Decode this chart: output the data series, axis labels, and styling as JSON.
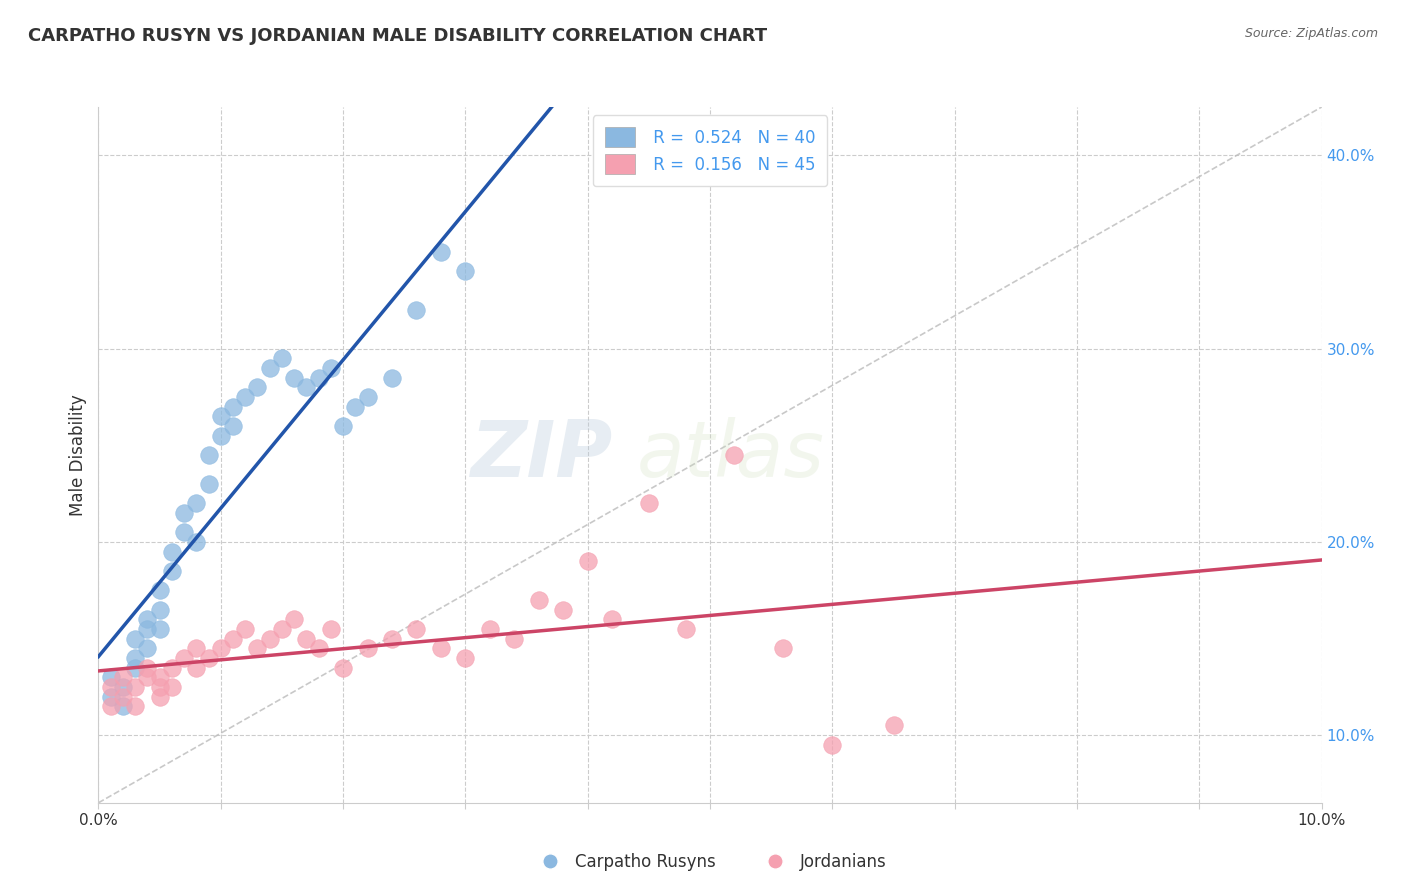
{
  "title": "CARPATHO RUSYN VS JORDANIAN MALE DISABILITY CORRELATION CHART",
  "source": "Source: ZipAtlas.com",
  "ylabel": "Male Disability",
  "xlim": [
    0.0,
    0.1
  ],
  "ylim": [
    0.065,
    0.425
  ],
  "blue_color": "#8BB8E0",
  "pink_color": "#F5A0B0",
  "blue_line_color": "#2255AA",
  "pink_line_color": "#CC4466",
  "ref_line_color": "#BBBBBB",
  "background_color": "#FFFFFF",
  "grid_color": "#CCCCCC",
  "right_tick_color": "#4499EE",
  "title_color": "#333333",
  "source_color": "#666666",
  "ylabel_color": "#333333",
  "watermark_color": "#DDDDDD",
  "blue_scatter_x": [
    0.001,
    0.001,
    0.002,
    0.002,
    0.003,
    0.003,
    0.003,
    0.004,
    0.004,
    0.004,
    0.005,
    0.005,
    0.005,
    0.006,
    0.006,
    0.007,
    0.007,
    0.008,
    0.008,
    0.009,
    0.009,
    0.01,
    0.01,
    0.011,
    0.011,
    0.012,
    0.013,
    0.014,
    0.015,
    0.016,
    0.017,
    0.018,
    0.019,
    0.02,
    0.021,
    0.022,
    0.024,
    0.026,
    0.028,
    0.03
  ],
  "blue_scatter_y": [
    0.12,
    0.13,
    0.125,
    0.115,
    0.14,
    0.15,
    0.135,
    0.16,
    0.155,
    0.145,
    0.165,
    0.175,
    0.155,
    0.195,
    0.185,
    0.205,
    0.215,
    0.22,
    0.2,
    0.23,
    0.245,
    0.255,
    0.265,
    0.27,
    0.26,
    0.275,
    0.28,
    0.29,
    0.295,
    0.285,
    0.28,
    0.285,
    0.29,
    0.26,
    0.27,
    0.275,
    0.285,
    0.32,
    0.35,
    0.34
  ],
  "pink_scatter_x": [
    0.001,
    0.001,
    0.002,
    0.002,
    0.003,
    0.003,
    0.004,
    0.004,
    0.005,
    0.005,
    0.005,
    0.006,
    0.006,
    0.007,
    0.008,
    0.008,
    0.009,
    0.01,
    0.011,
    0.012,
    0.013,
    0.014,
    0.015,
    0.016,
    0.017,
    0.018,
    0.019,
    0.02,
    0.022,
    0.024,
    0.026,
    0.028,
    0.03,
    0.032,
    0.034,
    0.036,
    0.038,
    0.04,
    0.042,
    0.045,
    0.048,
    0.052,
    0.056,
    0.06,
    0.065
  ],
  "pink_scatter_y": [
    0.125,
    0.115,
    0.13,
    0.12,
    0.125,
    0.115,
    0.13,
    0.135,
    0.125,
    0.12,
    0.13,
    0.135,
    0.125,
    0.14,
    0.135,
    0.145,
    0.14,
    0.145,
    0.15,
    0.155,
    0.145,
    0.15,
    0.155,
    0.16,
    0.15,
    0.145,
    0.155,
    0.135,
    0.145,
    0.15,
    0.155,
    0.145,
    0.14,
    0.155,
    0.15,
    0.17,
    0.165,
    0.19,
    0.16,
    0.22,
    0.155,
    0.245,
    0.145,
    0.095,
    0.105
  ]
}
